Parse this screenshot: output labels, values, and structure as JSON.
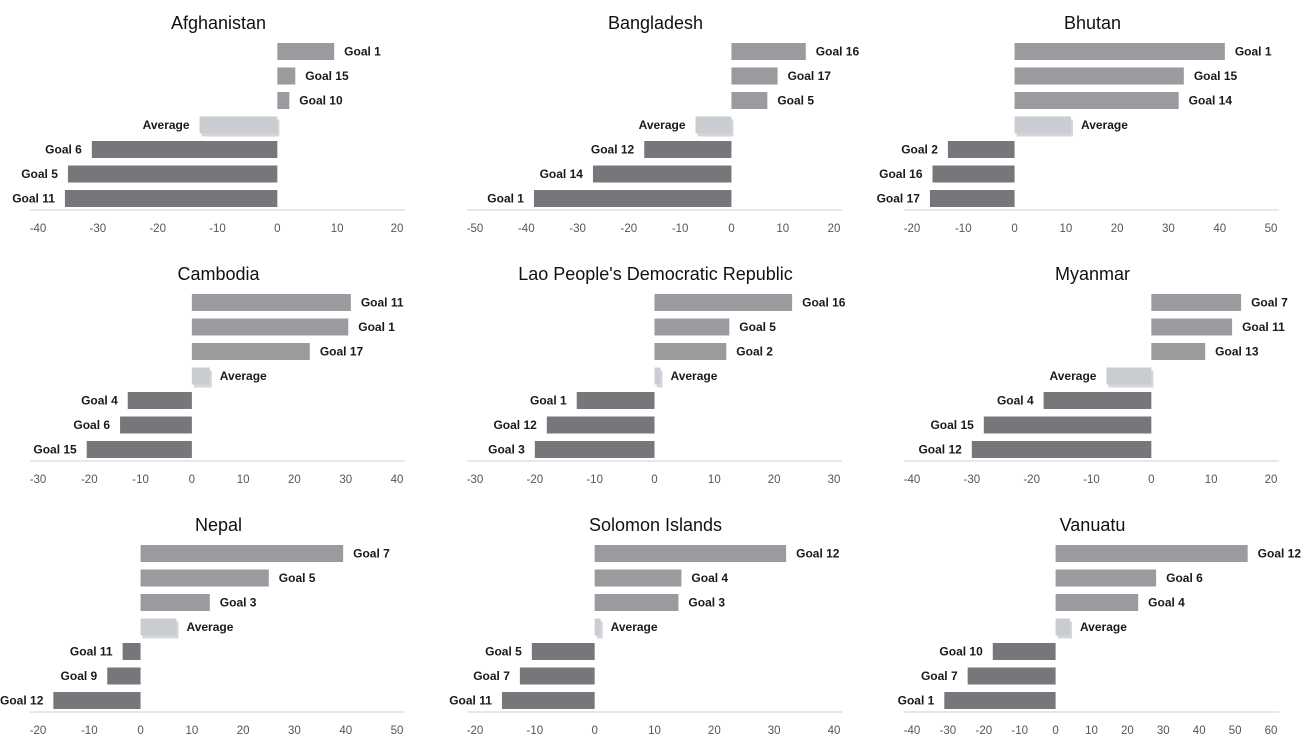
{
  "colors": {
    "positive": "#9a9b9e",
    "negative": "#76777b",
    "average": "#c9ccd0",
    "axis": "#cfcfcf"
  },
  "chart_data": [
    {
      "type": "bar",
      "title": "Afghanistan",
      "xlim": [
        -40,
        20
      ],
      "ticks": [
        -40,
        -30,
        -20,
        -10,
        0,
        10,
        20
      ],
      "grid": false,
      "bars": [
        {
          "label": "Goal 1",
          "value": 9.5,
          "kind": "positive"
        },
        {
          "label": "Goal 15",
          "value": 3,
          "kind": "positive"
        },
        {
          "label": "Goal 10",
          "value": 2,
          "kind": "positive"
        },
        {
          "label": "Average",
          "value": -13,
          "kind": "average"
        },
        {
          "label": "Goal 6",
          "value": -31,
          "kind": "negative"
        },
        {
          "label": "Goal 5",
          "value": -35,
          "kind": "negative"
        },
        {
          "label": "Goal 11",
          "value": -35.5,
          "kind": "negative"
        }
      ]
    },
    {
      "type": "bar",
      "title": "Bangladesh",
      "xlim": [
        -50,
        20
      ],
      "ticks": [
        -50,
        -40,
        -30,
        -20,
        -10,
        0,
        10,
        20
      ],
      "grid": false,
      "bars": [
        {
          "label": "Goal 16",
          "value": 14.5,
          "kind": "positive"
        },
        {
          "label": "Goal 17",
          "value": 9,
          "kind": "positive"
        },
        {
          "label": "Goal 5",
          "value": 7,
          "kind": "positive"
        },
        {
          "label": "Average",
          "value": -7,
          "kind": "average"
        },
        {
          "label": "Goal 12",
          "value": -17,
          "kind": "negative"
        },
        {
          "label": "Goal 14",
          "value": -27,
          "kind": "negative"
        },
        {
          "label": "Goal 1",
          "value": -38.5,
          "kind": "negative"
        }
      ]
    },
    {
      "type": "bar",
      "title": "Bhutan",
      "xlim": [
        -20,
        50
      ],
      "ticks": [
        -20,
        -10,
        0,
        10,
        20,
        30,
        40,
        50
      ],
      "grid": false,
      "bars": [
        {
          "label": "Goal 1",
          "value": 41,
          "kind": "positive"
        },
        {
          "label": "Goal 15",
          "value": 33,
          "kind": "positive"
        },
        {
          "label": "Goal 14",
          "value": 32,
          "kind": "positive"
        },
        {
          "label": "Average",
          "value": 11,
          "kind": "average"
        },
        {
          "label": "Goal 2",
          "value": -13,
          "kind": "negative"
        },
        {
          "label": "Goal 16",
          "value": -16,
          "kind": "negative"
        },
        {
          "label": "Goal 17",
          "value": -16.5,
          "kind": "negative"
        }
      ]
    },
    {
      "type": "bar",
      "title": "Cambodia",
      "xlim": [
        -30,
        40
      ],
      "ticks": [
        -30,
        -20,
        -10,
        0,
        10,
        20,
        30,
        40
      ],
      "grid": false,
      "bars": [
        {
          "label": "Goal 11",
          "value": 31,
          "kind": "positive"
        },
        {
          "label": "Goal 1",
          "value": 30.5,
          "kind": "positive"
        },
        {
          "label": "Goal 17",
          "value": 23,
          "kind": "positive"
        },
        {
          "label": "Average",
          "value": 3.5,
          "kind": "average"
        },
        {
          "label": "Goal 4",
          "value": -12.5,
          "kind": "negative"
        },
        {
          "label": "Goal 6",
          "value": -14,
          "kind": "negative"
        },
        {
          "label": "Goal 15",
          "value": -20.5,
          "kind": "negative"
        }
      ]
    },
    {
      "type": "bar",
      "title": "Lao People's Democratic Republic",
      "xlim": [
        -30,
        30
      ],
      "ticks": [
        -30,
        -20,
        -10,
        0,
        10,
        20,
        30
      ],
      "grid": false,
      "bars": [
        {
          "label": "Goal 16",
          "value": 23,
          "kind": "positive"
        },
        {
          "label": "Goal 5",
          "value": 12.5,
          "kind": "positive"
        },
        {
          "label": "Goal 2",
          "value": 12,
          "kind": "positive"
        },
        {
          "label": "Average",
          "value": 1,
          "kind": "average"
        },
        {
          "label": "Goal 1",
          "value": -13,
          "kind": "negative"
        },
        {
          "label": "Goal 12",
          "value": -18,
          "kind": "negative"
        },
        {
          "label": "Goal 3",
          "value": -20,
          "kind": "negative"
        }
      ]
    },
    {
      "type": "bar",
      "title": "Myanmar",
      "xlim": [
        -40,
        20
      ],
      "ticks": [
        -40,
        -30,
        -20,
        -10,
        0,
        10,
        20
      ],
      "grid": false,
      "bars": [
        {
          "label": "Goal 7",
          "value": 15,
          "kind": "positive"
        },
        {
          "label": "Goal 11",
          "value": 13.5,
          "kind": "positive"
        },
        {
          "label": "Goal 13",
          "value": 9,
          "kind": "positive"
        },
        {
          "label": "Average",
          "value": -7.5,
          "kind": "average"
        },
        {
          "label": "Goal 4",
          "value": -18,
          "kind": "negative"
        },
        {
          "label": "Goal 15",
          "value": -28,
          "kind": "negative"
        },
        {
          "label": "Goal 12",
          "value": -30,
          "kind": "negative"
        }
      ]
    },
    {
      "type": "bar",
      "title": "Nepal",
      "xlim": [
        -20,
        50
      ],
      "ticks": [
        -20,
        -10,
        0,
        10,
        20,
        30,
        40,
        50
      ],
      "grid": false,
      "bars": [
        {
          "label": "Goal 7",
          "value": 39.5,
          "kind": "positive"
        },
        {
          "label": "Goal 5",
          "value": 25,
          "kind": "positive"
        },
        {
          "label": "Goal 3",
          "value": 13.5,
          "kind": "positive"
        },
        {
          "label": "Average",
          "value": 7,
          "kind": "average"
        },
        {
          "label": "Goal 11",
          "value": -3.5,
          "kind": "negative"
        },
        {
          "label": "Goal 9",
          "value": -6.5,
          "kind": "negative"
        },
        {
          "label": "Goal 12",
          "value": -17,
          "kind": "negative"
        }
      ]
    },
    {
      "type": "bar",
      "title": "Solomon Islands",
      "xlim": [
        -20,
        40
      ],
      "ticks": [
        -20,
        -10,
        0,
        10,
        20,
        30,
        40
      ],
      "grid": false,
      "bars": [
        {
          "label": "Goal 12",
          "value": 32,
          "kind": "positive"
        },
        {
          "label": "Goal 4",
          "value": 14.5,
          "kind": "positive"
        },
        {
          "label": "Goal 3",
          "value": 14,
          "kind": "positive"
        },
        {
          "label": "Average",
          "value": 1,
          "kind": "average"
        },
        {
          "label": "Goal 5",
          "value": -10.5,
          "kind": "negative"
        },
        {
          "label": "Goal 7",
          "value": -12.5,
          "kind": "negative"
        },
        {
          "label": "Goal 11",
          "value": -15.5,
          "kind": "negative"
        }
      ]
    },
    {
      "type": "bar",
      "title": "Vanuatu",
      "xlim": [
        -40,
        60
      ],
      "ticks": [
        -40,
        -30,
        -20,
        -10,
        0,
        10,
        20,
        30,
        40,
        50,
        60
      ],
      "grid": false,
      "bars": [
        {
          "label": "Goal 12",
          "value": 53.5,
          "kind": "positive"
        },
        {
          "label": "Goal 6",
          "value": 28,
          "kind": "positive"
        },
        {
          "label": "Goal 4",
          "value": 23,
          "kind": "positive"
        },
        {
          "label": "Average",
          "value": 4,
          "kind": "average"
        },
        {
          "label": "Goal 10",
          "value": -17.5,
          "kind": "negative"
        },
        {
          "label": "Goal 7",
          "value": -24.5,
          "kind": "negative"
        },
        {
          "label": "Goal 1",
          "value": -31,
          "kind": "negative"
        }
      ]
    }
  ]
}
